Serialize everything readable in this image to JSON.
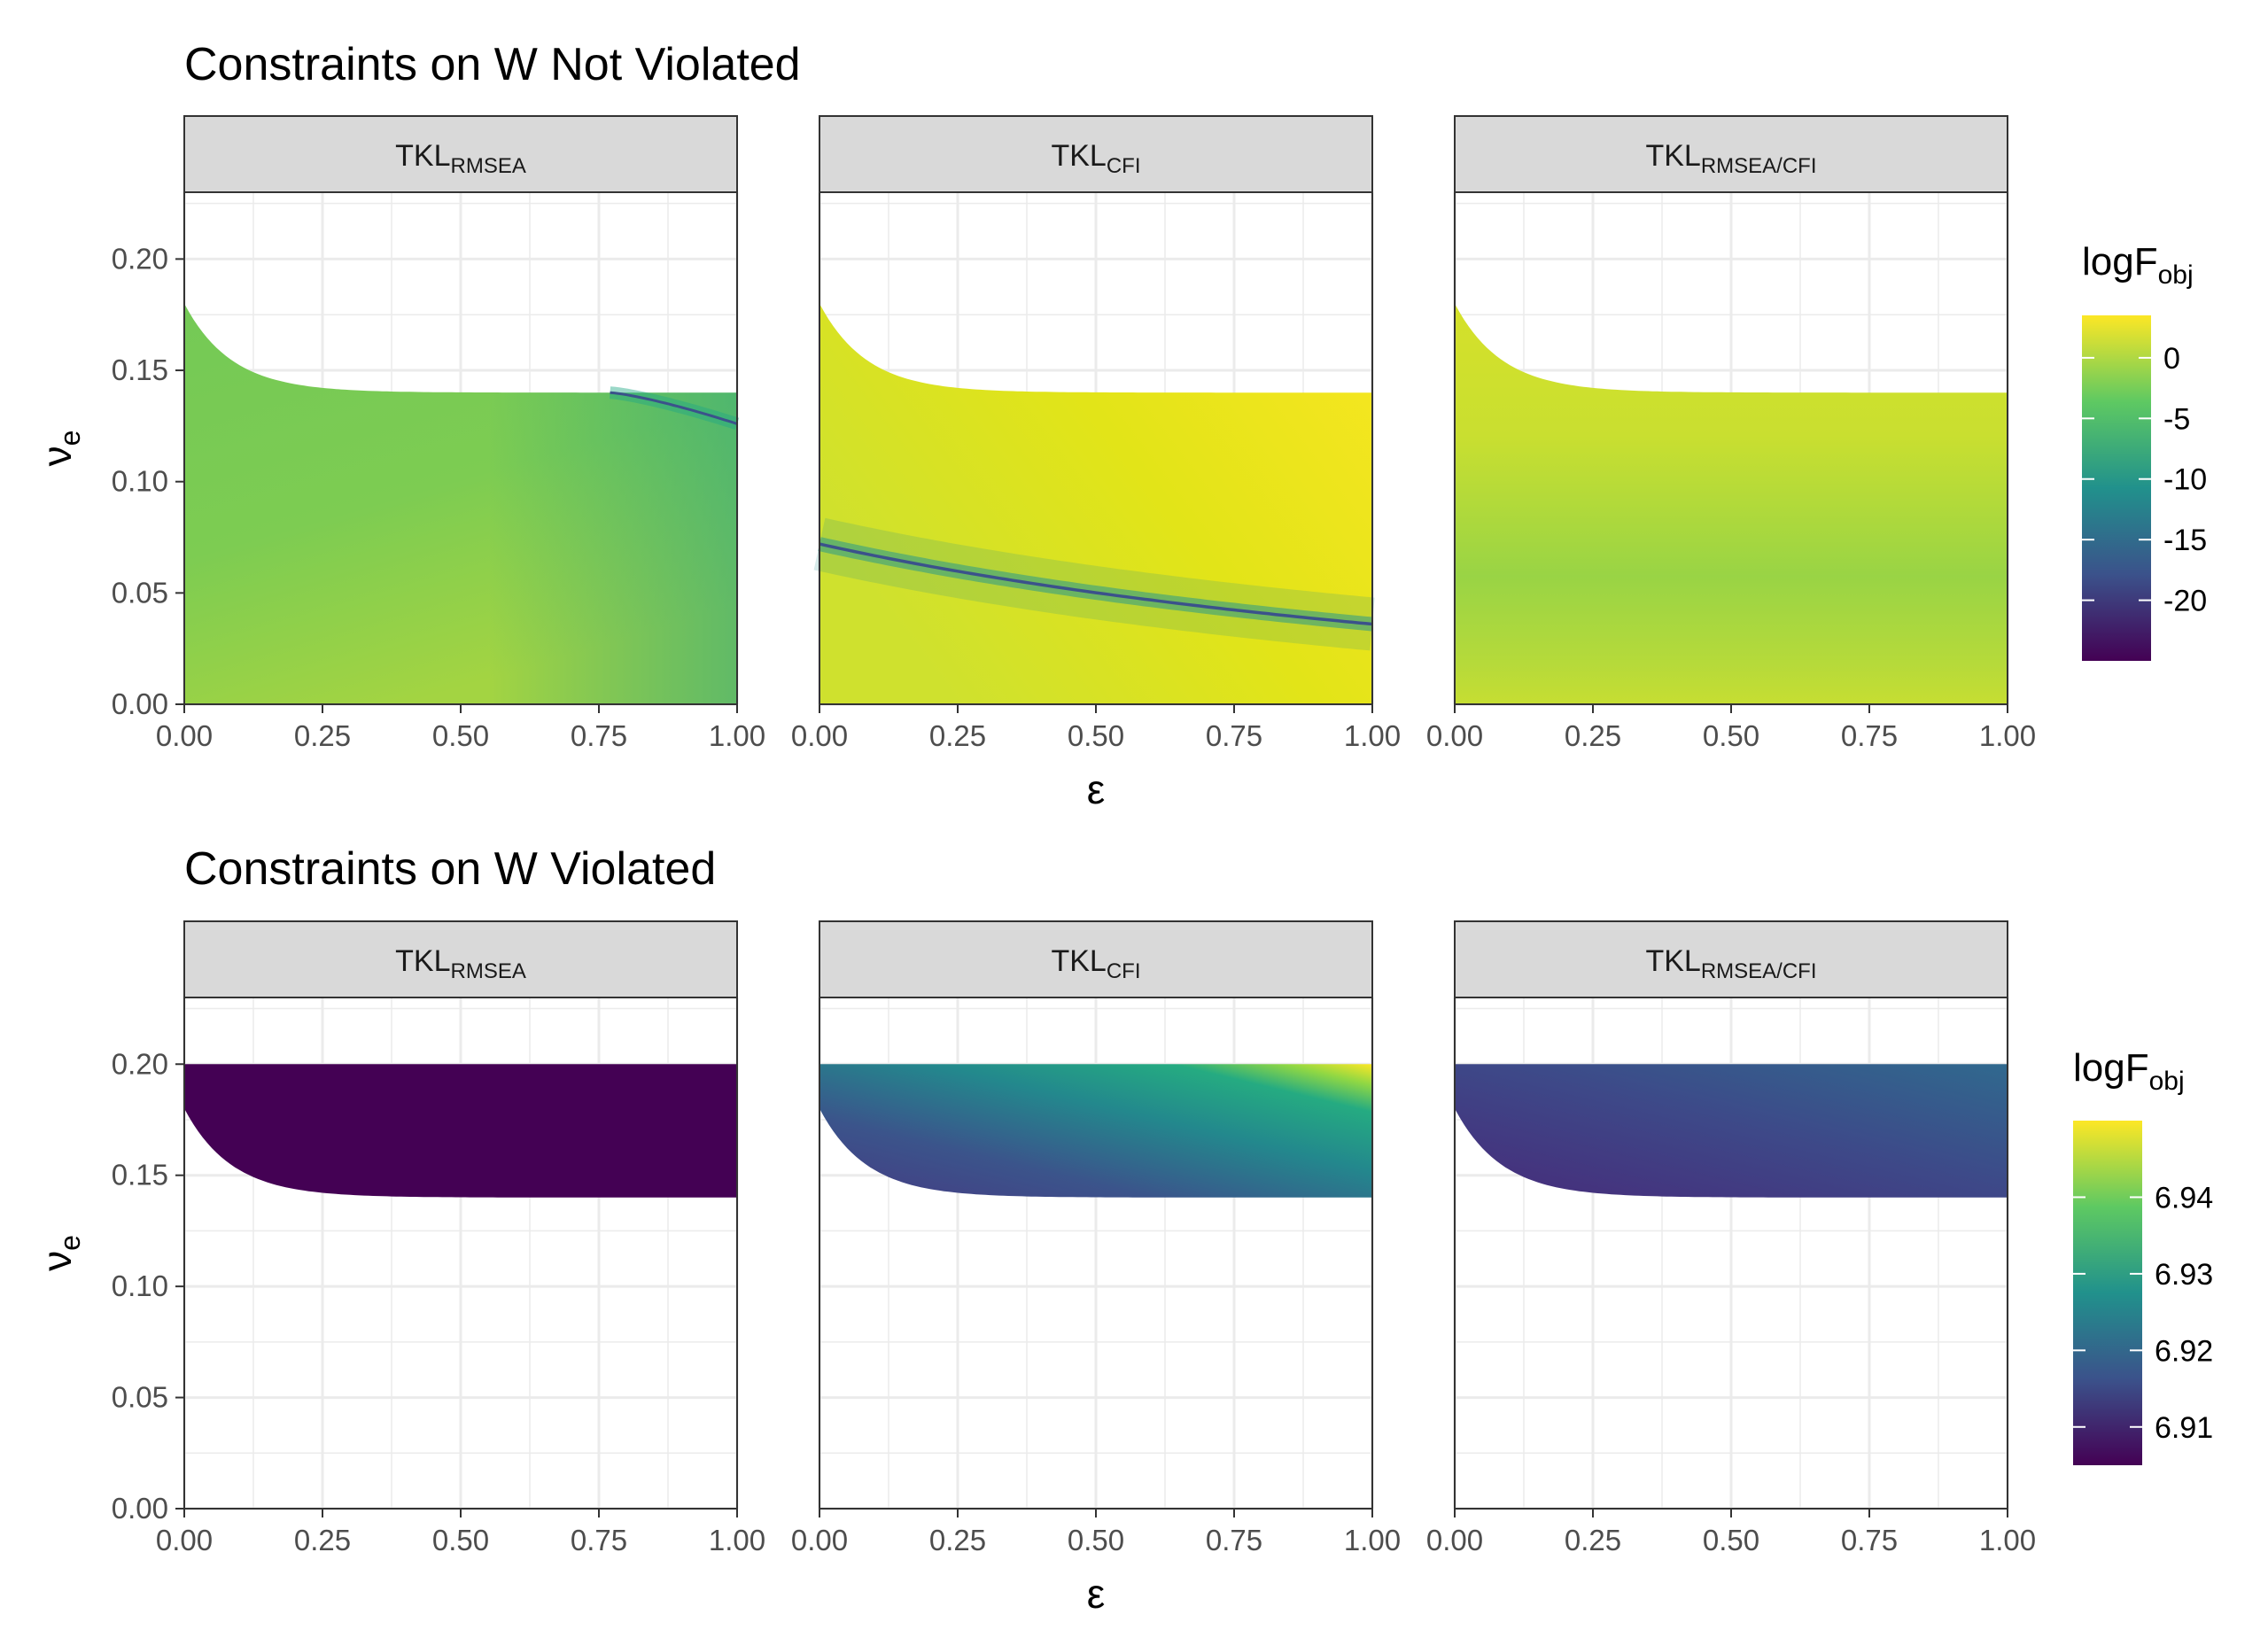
{
  "colors": {
    "grid": "#ebebeb",
    "strip_fill": "#d9d9d9",
    "border": "#333333",
    "tick_text": "#4d4d4d",
    "title_text": "#000000",
    "viridis": [
      "#440154",
      "#3b528b",
      "#21918c",
      "#5ec962",
      "#fde725"
    ]
  },
  "chart_data": [
    {
      "type": "heatmap",
      "title": "Constraints on W Not Violated",
      "xlabel": "ε",
      "ylabel_base": "ν",
      "ylabel_sub": "e",
      "xlim": [
        0,
        1
      ],
      "ylim": [
        0,
        0.23
      ],
      "x_ticks": [
        "0.00",
        "0.25",
        "0.50",
        "0.75",
        "1.00"
      ],
      "y_ticks": [
        "0.00",
        "0.05",
        "0.10",
        "0.15",
        "0.20"
      ],
      "legend": {
        "title_base": "logF",
        "title_sub": "obj",
        "position": "right",
        "range": [
          -25,
          3.5
        ],
        "ticks": [
          "0",
          "-5",
          "-10",
          "-15",
          "-20"
        ]
      },
      "panels": [
        {
          "label_base": "TKL",
          "label_sub": "RMSEA",
          "feasible_nu_range": "bounded above by ~0.14 (0.18 at ε = 0)",
          "minimum_curve": "ν from ~0.14 at ε = 0.77 to ~0.126 at ε = 1.00"
        },
        {
          "label_base": "TKL",
          "label_sub": "CFI",
          "feasible_nu_range": "bounded above by ~0.14 (0.18 at ε = 0)",
          "minimum_curve": "ν from ~0.072 at ε = 0 to ~0.036 at ε = 1.00"
        },
        {
          "label_base": "TKL",
          "label_sub": "RMSEA/CFI",
          "feasible_nu_range": "bounded above by ~0.14 (0.18 at ε = 0)",
          "minimum_curve": "none"
        }
      ]
    },
    {
      "type": "heatmap",
      "title": "Constraints on W Violated",
      "xlabel": "ε",
      "ylabel_base": "ν",
      "ylabel_sub": "e",
      "xlim": [
        0,
        1
      ],
      "ylim": [
        0,
        0.23
      ],
      "x_ticks": [
        "0.00",
        "0.25",
        "0.50",
        "0.75",
        "1.00"
      ],
      "y_ticks": [
        "0.00",
        "0.05",
        "0.10",
        "0.15",
        "0.20"
      ],
      "legend": {
        "title_base": "logF",
        "title_sub": "obj",
        "position": "right",
        "range": [
          6.905,
          6.95
        ],
        "ticks": [
          "6.94",
          "6.93",
          "6.92",
          "6.91"
        ]
      },
      "panels": [
        {
          "label_base": "TKL",
          "label_sub": "RMSEA",
          "feasible_nu_range": "from ~0.14 (0.18 at ε = 0) up to 0.20",
          "minimum_curve": "none"
        },
        {
          "label_base": "TKL",
          "label_sub": "CFI",
          "feasible_nu_range": "from ~0.14 (0.18 at ε = 0) up to 0.20",
          "minimum_curve": "none"
        },
        {
          "label_base": "TKL",
          "label_sub": "RMSEA/CFI",
          "feasible_nu_range": "from ~0.14 (0.18 at ε = 0) up to 0.20",
          "minimum_curve": "none"
        }
      ]
    }
  ]
}
